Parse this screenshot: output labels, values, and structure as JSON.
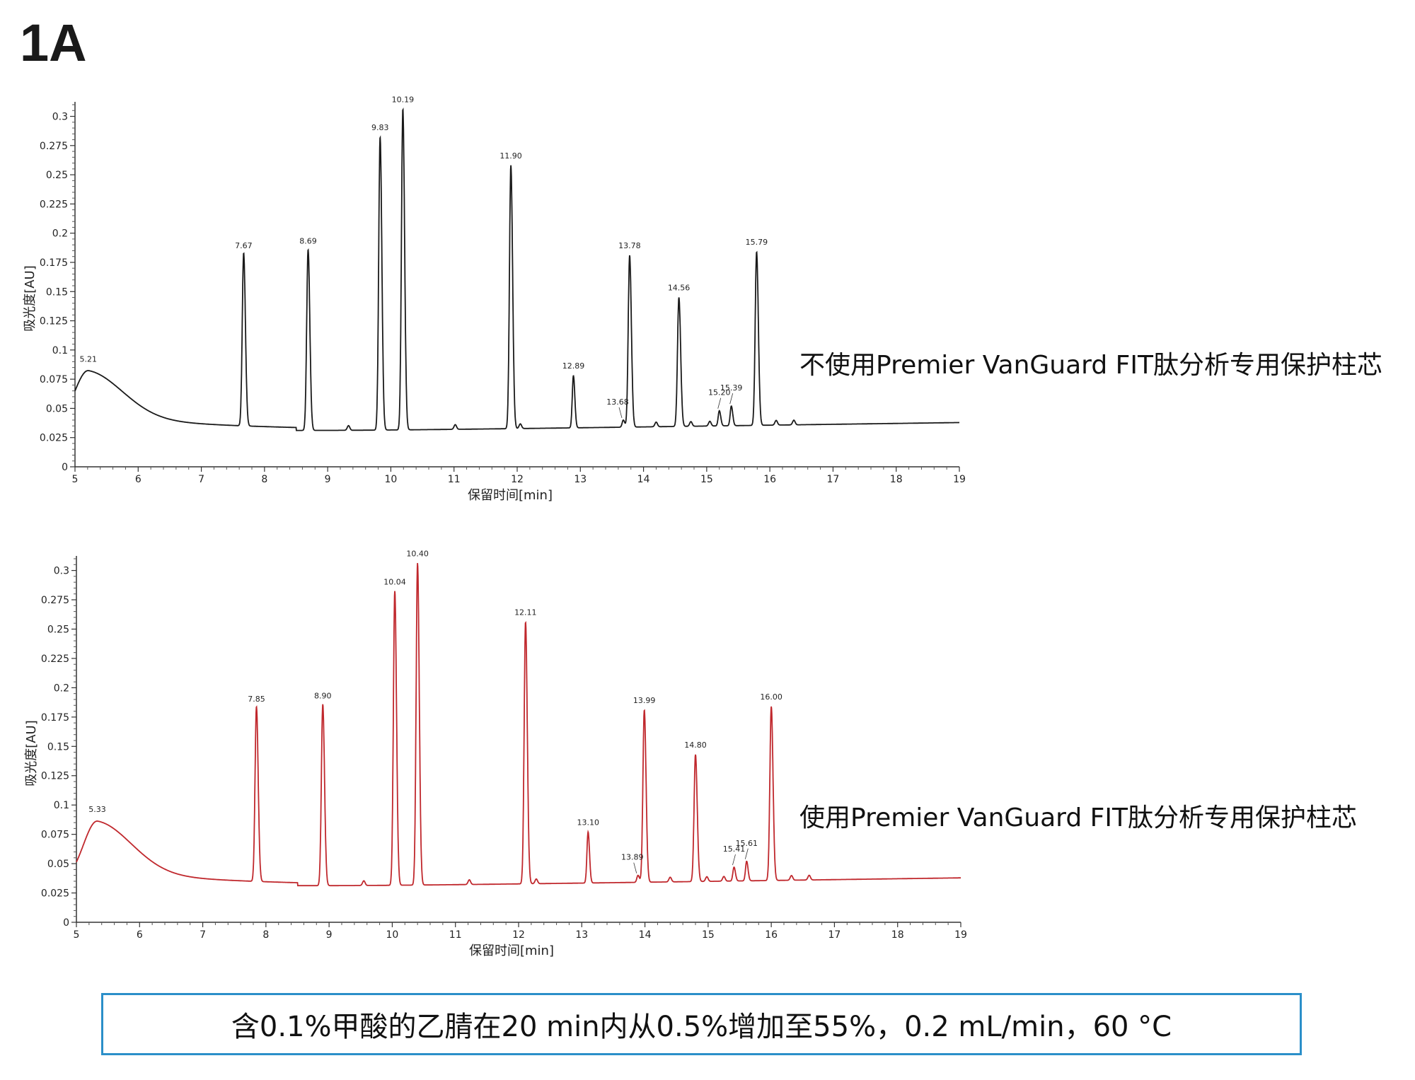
{
  "figure_label": "1A",
  "conditions": "含0.1%甲酸的乙腈在20 min内从0.5%增加至55%，0.2 mL/min，60 °C",
  "chart_data": [
    {
      "type": "line",
      "caption": "不使用Premier VanGuard FIT肽分析专用保护柱芯",
      "xlabel": "保留时间[min]",
      "ylabel": "吸光度[AU]",
      "xlim": [
        5,
        19
      ],
      "ylim": [
        0,
        0.31
      ],
      "xticks": [
        "5",
        "6",
        "7",
        "8",
        "9",
        "10",
        "11",
        "12",
        "13",
        "14",
        "15",
        "16",
        "17",
        "18",
        "19"
      ],
      "yticks": [
        "0",
        "0.025",
        "0.05",
        "0.075",
        "0.1",
        "0.125",
        "0.15",
        "0.175",
        "0.2",
        "0.225",
        "0.25",
        "0.275",
        "0.3"
      ],
      "color": "#1a1a1a",
      "peaks": [
        {
          "x": 5.21,
          "y": 0.084,
          "label": "5.21"
        },
        {
          "x": 7.67,
          "y": 0.181,
          "label": "7.67"
        },
        {
          "x": 8.69,
          "y": 0.185,
          "label": "8.69"
        },
        {
          "x": 9.83,
          "y": 0.282,
          "label": "9.83"
        },
        {
          "x": 10.19,
          "y": 0.306,
          "label": "10.19"
        },
        {
          "x": 11.9,
          "y": 0.258,
          "label": "11.90"
        },
        {
          "x": 12.89,
          "y": 0.078,
          "label": "12.89"
        },
        {
          "x": 13.68,
          "y": 0.04,
          "label": "13.68"
        },
        {
          "x": 13.78,
          "y": 0.181,
          "label": "13.78"
        },
        {
          "x": 14.56,
          "y": 0.145,
          "label": "14.56"
        },
        {
          "x": 15.2,
          "y": 0.048,
          "label": "15.20"
        },
        {
          "x": 15.39,
          "y": 0.052,
          "label": "15.39"
        },
        {
          "x": 15.79,
          "y": 0.184,
          "label": "15.79"
        }
      ]
    },
    {
      "type": "line",
      "caption": "使用Premier VanGuard FIT肽分析专用保护柱芯",
      "xlabel": "保留时间[min]",
      "ylabel": "吸光度[AU]",
      "xlim": [
        5,
        19
      ],
      "ylim": [
        0,
        0.31
      ],
      "xticks": [
        "5",
        "6",
        "7",
        "8",
        "9",
        "10",
        "11",
        "12",
        "13",
        "14",
        "15",
        "16",
        "17",
        "18",
        "19"
      ],
      "yticks": [
        "0",
        "0.025",
        "0.05",
        "0.075",
        "0.1",
        "0.125",
        "0.15",
        "0.175",
        "0.2",
        "0.225",
        "0.25",
        "0.275",
        "0.3"
      ],
      "color": "#c0282d",
      "peaks": [
        {
          "x": 5.33,
          "y": 0.088,
          "label": "5.33"
        },
        {
          "x": 7.85,
          "y": 0.182,
          "label": "7.85"
        },
        {
          "x": 8.9,
          "y": 0.185,
          "label": "8.90"
        },
        {
          "x": 10.04,
          "y": 0.282,
          "label": "10.04"
        },
        {
          "x": 10.4,
          "y": 0.306,
          "label": "10.40"
        },
        {
          "x": 12.11,
          "y": 0.256,
          "label": "12.11"
        },
        {
          "x": 13.1,
          "y": 0.077,
          "label": "13.10"
        },
        {
          "x": 13.89,
          "y": 0.04,
          "label": "13.89"
        },
        {
          "x": 13.99,
          "y": 0.181,
          "label": "13.99"
        },
        {
          "x": 14.8,
          "y": 0.143,
          "label": "14.80"
        },
        {
          "x": 15.41,
          "y": 0.047,
          "label": "15.41"
        },
        {
          "x": 15.61,
          "y": 0.052,
          "label": "15.61"
        },
        {
          "x": 16.0,
          "y": 0.184,
          "label": "16.00"
        }
      ]
    }
  ]
}
